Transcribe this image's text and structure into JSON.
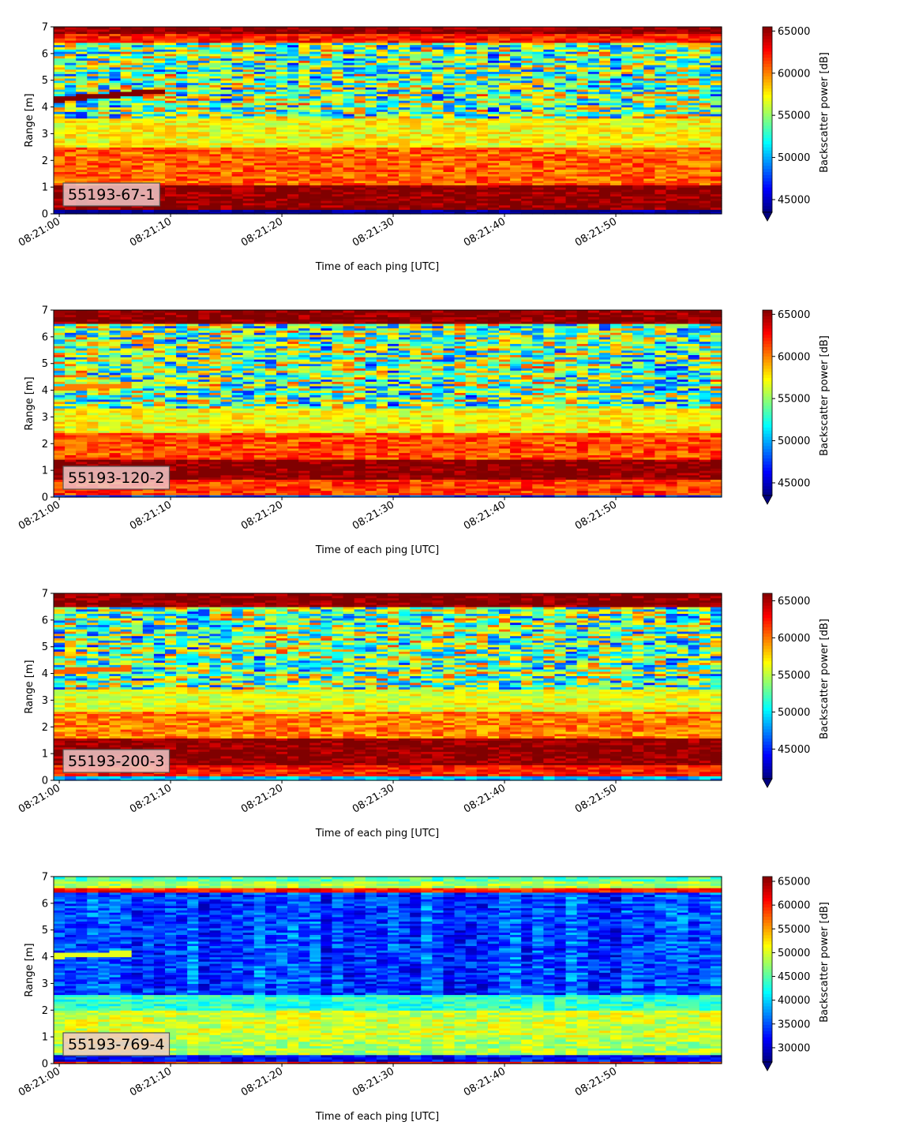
{
  "chart_data": [
    {
      "type": "heatmap",
      "label": "55193-67-1",
      "xlabel": "Time of each ping [UTC]",
      "ylabel": "Range [m]",
      "x_ticks": [
        "08:21:00",
        "08:21:10",
        "08:21:20",
        "08:21:30",
        "08:21:40",
        "08:21:50"
      ],
      "x_range_seconds": [
        -0.5,
        59.5
      ],
      "y_ticks": [
        0,
        1,
        2,
        3,
        4,
        5,
        6,
        7
      ],
      "ylim": [
        0,
        7
      ],
      "colorbar": {
        "label": "Backscatter power [dB]",
        "ticks": [
          45000,
          50000,
          55000,
          60000,
          65000
        ],
        "range": [
          43500,
          65500
        ],
        "extend": "min",
        "colormap": "jet"
      },
      "structure": {
        "noise_band": [
          1.0,
          6.4
        ],
        "bands": [
          {
            "from": 0.0,
            "to": 0.2,
            "level": 0.0
          },
          {
            "from": 0.2,
            "to": 1.05,
            "level": 1.0
          },
          {
            "from": 1.05,
            "to": 2.5,
            "level": 0.78
          },
          {
            "from": 2.5,
            "to": 3.6,
            "level": 0.62
          },
          {
            "from": 6.4,
            "to": 6.75,
            "level": 0.85
          },
          {
            "from": 6.75,
            "to": 7.0,
            "level": 1.0
          }
        ],
        "target_track": {
          "t_end": 9,
          "y_start": 4.3,
          "y_end": 4.6,
          "level": 1.0
        }
      }
    },
    {
      "type": "heatmap",
      "label": "55193-120-2",
      "xlabel": "Time of each ping [UTC]",
      "ylabel": "Range [m]",
      "x_ticks": [
        "08:21:00",
        "08:21:10",
        "08:21:20",
        "08:21:30",
        "08:21:40",
        "08:21:50"
      ],
      "x_range_seconds": [
        -0.5,
        59.5
      ],
      "y_ticks": [
        0,
        1,
        2,
        3,
        4,
        5,
        6,
        7
      ],
      "ylim": [
        0,
        7
      ],
      "colorbar": {
        "label": "Backscatter power [dB]",
        "ticks": [
          45000,
          50000,
          55000,
          60000,
          65000
        ],
        "range": [
          43500,
          65500
        ],
        "extend": "min",
        "colormap": "jet"
      },
      "structure": {
        "noise_band": [
          1.3,
          6.5
        ],
        "bands": [
          {
            "from": 0.0,
            "to": 0.1,
            "level": 0.2
          },
          {
            "from": 0.1,
            "to": 0.65,
            "level": 0.82
          },
          {
            "from": 0.65,
            "to": 1.45,
            "level": 1.0
          },
          {
            "from": 1.45,
            "to": 2.4,
            "level": 0.8
          },
          {
            "from": 2.4,
            "to": 3.3,
            "level": 0.62
          },
          {
            "from": 6.5,
            "to": 7.0,
            "level": 1.0
          }
        ],
        "target_track": {
          "t_end": 6,
          "y_start": 4.1,
          "y_end": 4.2,
          "level": 0.75
        }
      }
    },
    {
      "type": "heatmap",
      "label": "55193-200-3",
      "xlabel": "Time of each ping [UTC]",
      "ylabel": "Range [m]",
      "x_ticks": [
        "08:21:00",
        "08:21:10",
        "08:21:20",
        "08:21:30",
        "08:21:40",
        "08:21:50"
      ],
      "x_range_seconds": [
        -0.5,
        59.5
      ],
      "y_ticks": [
        0,
        1,
        2,
        3,
        4,
        5,
        6,
        7
      ],
      "ylim": [
        0,
        7
      ],
      "colorbar": {
        "label": "Backscatter power [dB]",
        "ticks": [
          45000,
          50000,
          55000,
          60000,
          65000
        ],
        "range": [
          41000,
          66000
        ],
        "extend": "min",
        "colormap": "jet"
      },
      "structure": {
        "noise_band": [
          1.5,
          6.5
        ],
        "bands": [
          {
            "from": 0.0,
            "to": 0.15,
            "level": 0.3
          },
          {
            "from": 0.15,
            "to": 0.6,
            "level": 0.85
          },
          {
            "from": 0.6,
            "to": 1.6,
            "level": 1.0
          },
          {
            "from": 1.6,
            "to": 2.6,
            "level": 0.75
          },
          {
            "from": 2.6,
            "to": 3.4,
            "level": 0.6
          },
          {
            "from": 6.5,
            "to": 7.0,
            "level": 1.0
          }
        ],
        "target_track": {
          "t_end": 6,
          "y_start": 4.1,
          "y_end": 4.2,
          "level": 0.78
        }
      }
    },
    {
      "type": "heatmap",
      "label": "55193-769-4",
      "xlabel": "Time of each ping [UTC]",
      "ylabel": "Range [m]",
      "x_ticks": [
        "08:21:00",
        "08:21:10",
        "08:21:20",
        "08:21:30",
        "08:21:40",
        "08:21:50"
      ],
      "x_range_seconds": [
        -0.5,
        59.5
      ],
      "y_ticks": [
        0,
        1,
        2,
        3,
        4,
        5,
        6,
        7
      ],
      "ylim": [
        0,
        7
      ],
      "colorbar": {
        "label": "Backscatter power [dB]",
        "ticks": [
          30000,
          35000,
          40000,
          45000,
          50000,
          55000,
          60000,
          65000
        ],
        "range": [
          27000,
          66000
        ],
        "extend": "min",
        "colormap": "jet"
      },
      "structure": {
        "noise_band": [
          2.6,
          6.4
        ],
        "noise_center": 0.2,
        "noise_spread": 0.1,
        "bands": [
          {
            "from": 0.0,
            "to": 0.12,
            "level": 0.85
          },
          {
            "from": 0.12,
            "to": 0.3,
            "level": 0.12
          },
          {
            "from": 0.3,
            "to": 1.0,
            "level": 0.55
          },
          {
            "from": 1.0,
            "to": 2.0,
            "level": 0.58
          },
          {
            "from": 2.0,
            "to": 2.6,
            "level": 0.42
          },
          {
            "from": 6.4,
            "to": 6.6,
            "level": 0.85
          },
          {
            "from": 6.6,
            "to": 6.8,
            "level": 0.55
          },
          {
            "from": 6.8,
            "to": 7.0,
            "level": 0.45
          }
        ],
        "target_track": {
          "t_end": 6,
          "y_start": 4.05,
          "y_end": 4.12,
          "level": 0.6
        }
      }
    }
  ]
}
